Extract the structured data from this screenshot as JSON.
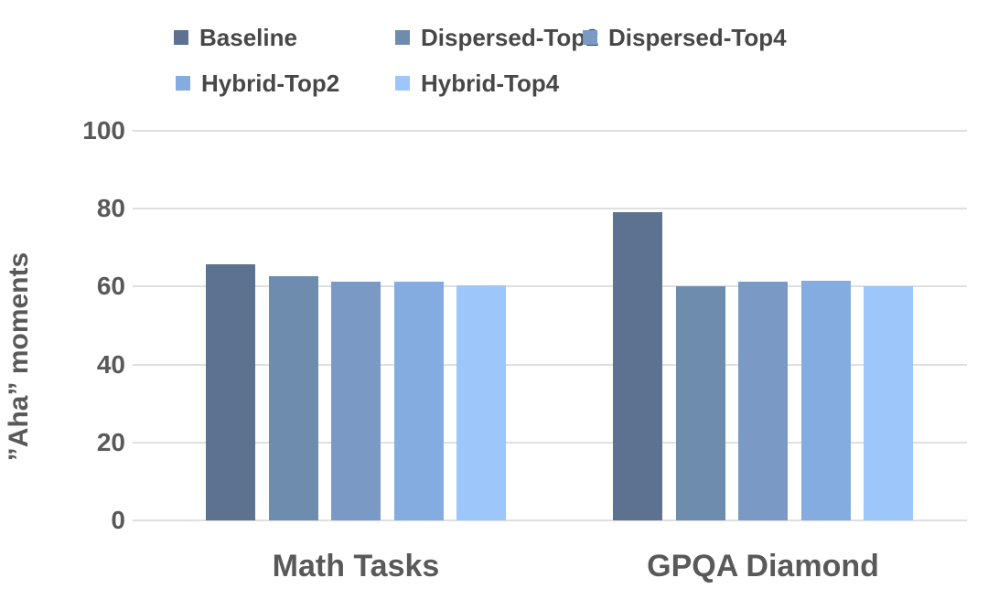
{
  "chart_data": {
    "type": "bar",
    "title": "",
    "categories": [
      "Math Tasks",
      "GPQA Diamond"
    ],
    "series": [
      {
        "name": "Baseline",
        "color": "#5D7191",
        "values": [
          65.7,
          79.0
        ]
      },
      {
        "name": "Dispersed-Top2",
        "color": "#6E8CAD",
        "values": [
          62.7,
          60.0
        ]
      },
      {
        "name": "Dispersed-Top4",
        "color": "#7A99C4",
        "values": [
          61.2,
          61.3
        ]
      },
      {
        "name": "Hybrid-Top2",
        "color": "#85ACE0",
        "values": [
          61.2,
          61.6
        ]
      },
      {
        "name": "Hybrid-Top4",
        "color": "#9DC6FA",
        "values": [
          60.3,
          60.0
        ]
      }
    ],
    "xlabel": "",
    "ylabel": "”Aha” moments",
    "ylim": [
      0,
      100
    ],
    "yticks": [
      0,
      20,
      40,
      60,
      80,
      100
    ],
    "grid": true,
    "gridline_color": "#DFDFDF",
    "background_color": "#FFFFFF",
    "axis_text_color": "#595959",
    "legend_text_color": "#474747",
    "legend_position": "top-left, two rows"
  }
}
